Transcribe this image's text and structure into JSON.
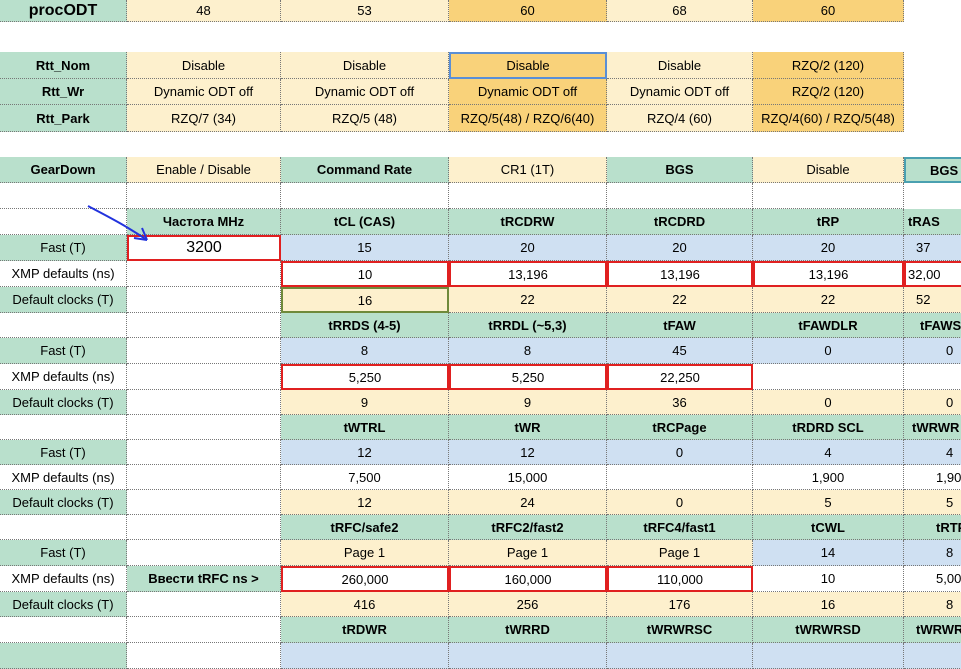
{
  "proc": {
    "label": "procODT",
    "values": [
      "48",
      "53",
      "60",
      "68",
      "60"
    ]
  },
  "rtt": {
    "nom": {
      "label": "Rtt_Nom",
      "values": [
        "Disable",
        "Disable",
        "Disable",
        "Disable",
        "RZQ/2 (120)"
      ]
    },
    "wr": {
      "label": "Rtt_Wr",
      "values": [
        "Dynamic ODT off",
        "Dynamic ODT off",
        "Dynamic ODT off",
        "Dynamic ODT off",
        "RZQ/2 (120)"
      ]
    },
    "park": {
      "label": "Rtt_Park",
      "values": [
        "RZQ/7 (34)",
        "RZQ/5 (48)",
        "RZQ/5(48) / RZQ/6(40)",
        "RZQ/4 (60)",
        "RZQ/4(60) / RZQ/5(48)"
      ]
    }
  },
  "geardown": {
    "label": "GearDown",
    "value": "Enable / Disable",
    "cmd_label": "Command Rate",
    "cmd_value": "CR1 (1T)",
    "bgs_label": "BGS",
    "bgs_value": "Disable",
    "bgs2_label": "BGS"
  },
  "row_labels": {
    "fast": "Fast (T)",
    "xmp": "XMP defaults (ns)",
    "def": "Default clocks (T)"
  },
  "freq": {
    "header": "Частота MHz",
    "value": "3200",
    "trfc_prompt": "Ввести tRFC ns >"
  },
  "block1": {
    "headers": [
      "tCL (CAS)",
      "tRCDRW",
      "tRCDRD",
      "tRP",
      "tRAS"
    ],
    "fast": [
      "15",
      "20",
      "20",
      "20",
      "37"
    ],
    "xmp": [
      "10",
      "13,196",
      "13,196",
      "13,196",
      "32,00"
    ],
    "def": [
      "16",
      "22",
      "22",
      "22",
      "52"
    ]
  },
  "block2": {
    "headers": [
      "tRRDS (4-5)",
      "tRRDL (~5,3)",
      "tFAW",
      "tFAWDLR",
      "tFAWS"
    ],
    "fast": [
      "8",
      "8",
      "45",
      "0",
      "0"
    ],
    "xmp": [
      "5,250",
      "5,250",
      "22,250",
      "",
      ""
    ],
    "def": [
      "9",
      "9",
      "36",
      "0",
      "0"
    ]
  },
  "block3": {
    "headers": [
      "tWTRL",
      "tWR",
      "tRCPage",
      "tRDRD SCL",
      "tWRWR"
    ],
    "fast": [
      "12",
      "12",
      "0",
      "4",
      "4"
    ],
    "xmp": [
      "7,500",
      "15,000",
      "",
      "1,900",
      "1,90"
    ],
    "def": [
      "12",
      "24",
      "0",
      "5",
      "5"
    ]
  },
  "block4": {
    "headers": [
      "tRFC/safe2",
      "tRFC2/fast2",
      "tRFC4/fast1",
      "tCWL",
      "tRTP"
    ],
    "fast": [
      "Page 1",
      "Page 1",
      "Page 1",
      "14",
      "8"
    ],
    "xmp": [
      "260,000",
      "160,000",
      "110,000",
      "10",
      "5,00"
    ],
    "def": [
      "416",
      "256",
      "176",
      "16",
      "8"
    ]
  },
  "block5": {
    "headers": [
      "tRDWR",
      "tWRRD",
      "tWRWRSC",
      "tWRWRSD",
      "tWRWR"
    ]
  }
}
